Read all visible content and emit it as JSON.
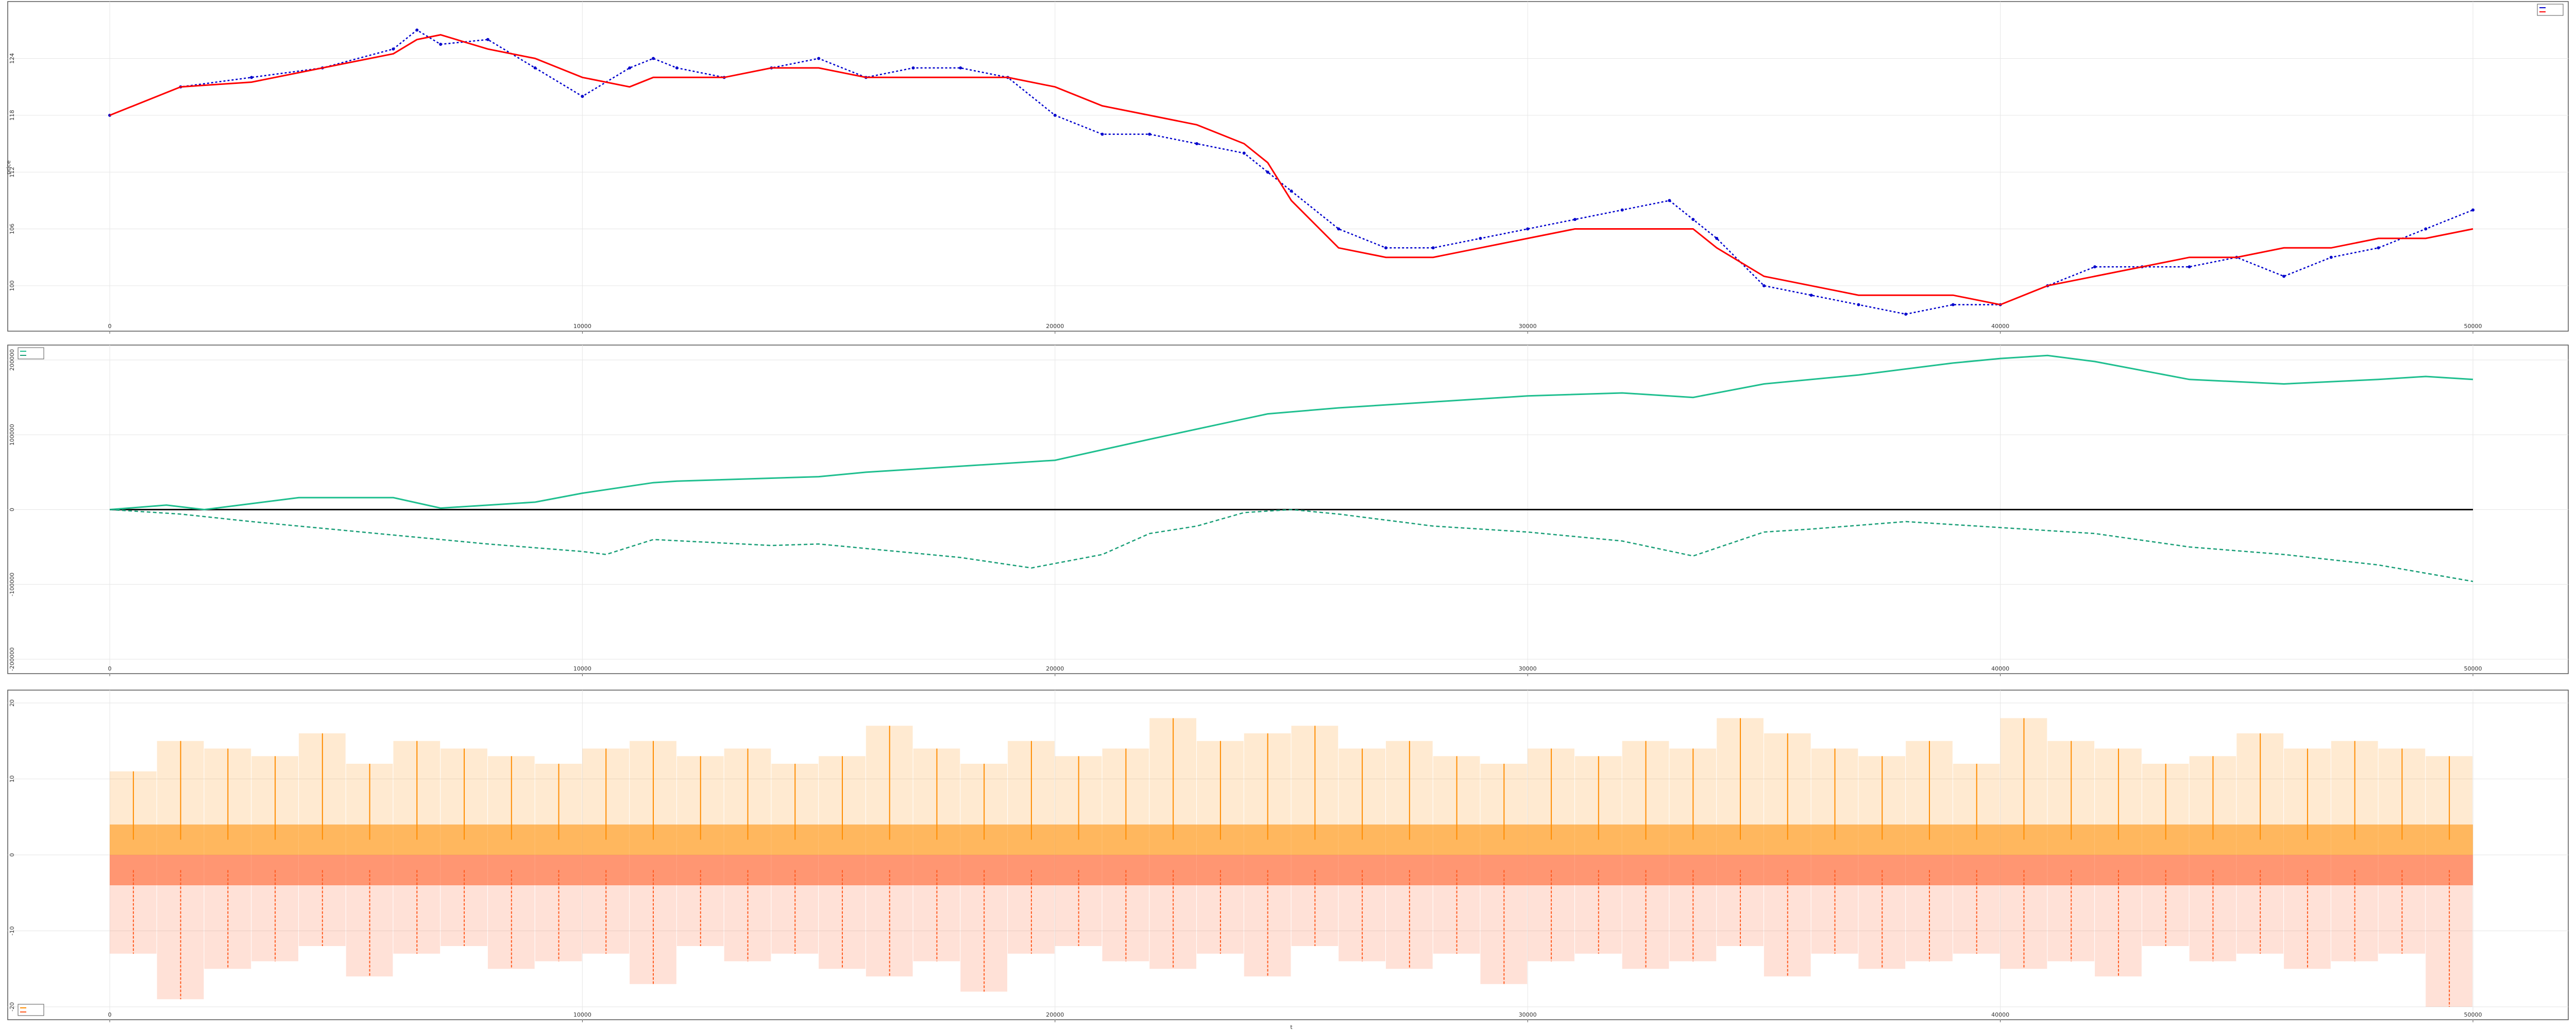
{
  "colors": {
    "frame": "#555555",
    "grid": "#e6e6e6",
    "price_actual": "#0000cc",
    "price_model": "#ff0000",
    "cum_pos": "#1fbf8f",
    "cum_neg": "#1a9f78",
    "zero_line": "#111111",
    "step_pos": "#ff8c00",
    "step_neg": "#ff5a1f"
  },
  "chart_data": [
    {
      "id": "price",
      "type": "line",
      "title": "",
      "xlabel": "",
      "ylabel": "price",
      "xlim": [
        0,
        50000
      ],
      "ylim": [
        97,
        128
      ],
      "x_ticks": [
        0,
        10000,
        20000,
        30000,
        40000,
        50000
      ],
      "y_ticks": [
        100,
        106,
        112,
        118,
        124
      ],
      "legend": {
        "position": "top-right",
        "entries": [
          "",
          ""
        ]
      },
      "series": [
        {
          "style": "dashed-marker",
          "color_key": "price_actual",
          "x": [
            0,
            1500,
            3000,
            4500,
            6000,
            6500,
            7000,
            8000,
            9000,
            10000,
            11000,
            11500,
            12000,
            13000,
            14000,
            15000,
            16000,
            17000,
            18000,
            19000,
            20000,
            21000,
            22000,
            23000,
            24000,
            24500,
            25000,
            26000,
            27000,
            28000,
            29000,
            30000,
            31000,
            32000,
            33000,
            33500,
            34000,
            35000,
            36000,
            37000,
            38000,
            39000,
            40000,
            41000,
            42000,
            43000,
            44000,
            45000,
            46000,
            47000,
            48000,
            49000,
            50000
          ],
          "values": [
            118,
            121,
            122,
            123,
            125,
            127,
            125.5,
            126,
            123,
            120,
            123,
            124,
            123,
            122,
            123,
            124,
            122,
            123,
            123,
            122,
            118,
            116,
            116,
            115,
            114,
            112,
            110,
            106,
            104,
            104,
            105,
            106,
            107,
            108,
            109,
            107,
            105,
            100,
            99,
            98,
            97,
            98,
            98,
            100,
            102,
            102,
            102,
            103,
            101,
            103,
            104,
            106,
            108
          ]
        },
        {
          "style": "solid",
          "color_key": "price_model",
          "x": [
            0,
            1500,
            3000,
            4500,
            6000,
            6500,
            7000,
            8000,
            9000,
            10000,
            11000,
            11500,
            12000,
            13000,
            14000,
            15000,
            16000,
            17000,
            18000,
            19000,
            20000,
            21000,
            22000,
            23000,
            24000,
            24500,
            25000,
            26000,
            27000,
            28000,
            29000,
            30000,
            31000,
            32000,
            33000,
            33500,
            34000,
            35000,
            36000,
            37000,
            38000,
            39000,
            40000,
            41000,
            42000,
            43000,
            44000,
            45000,
            46000,
            47000,
            48000,
            49000,
            50000
          ],
          "values": [
            118,
            121,
            121.5,
            123,
            124.5,
            126,
            126.5,
            125,
            124,
            122,
            121,
            122,
            122,
            122,
            123,
            123,
            122,
            122,
            122,
            122,
            121,
            119,
            118,
            117,
            115,
            113,
            109,
            104,
            103,
            103,
            104,
            105,
            106,
            106,
            106,
            106,
            104,
            101,
            100,
            99,
            99,
            99,
            98,
            100,
            101,
            102,
            103,
            103,
            104,
            104,
            105,
            105,
            106
          ]
        }
      ]
    },
    {
      "id": "cumulative",
      "type": "line",
      "title": "",
      "xlabel": "",
      "ylabel": "",
      "xlim": [
        0,
        50000
      ],
      "ylim": [
        -200000,
        220000
      ],
      "x_ticks": [
        0,
        10000,
        20000,
        30000,
        40000,
        50000
      ],
      "y_ticks": [
        -200000,
        -100000,
        0,
        100000,
        200000
      ],
      "legend": {
        "position": "top-left",
        "entries": [
          "",
          ""
        ]
      },
      "series": [
        {
          "style": "solid",
          "color_key": "cum_pos",
          "x": [
            0,
            1200,
            2000,
            4000,
            6000,
            7000,
            9000,
            10000,
            11500,
            12000,
            15000,
            16000,
            20000,
            22000,
            24500,
            26000,
            28000,
            30000,
            32000,
            33500,
            35000,
            37000,
            39000,
            40000,
            41000,
            42000,
            44000,
            46000,
            48000,
            49000,
            50000
          ],
          "values": [
            0,
            6000,
            0,
            16000,
            16000,
            2000,
            10000,
            22000,
            36000,
            38000,
            44000,
            50000,
            66000,
            94000,
            128000,
            136000,
            144000,
            152000,
            156000,
            150000,
            168000,
            180000,
            196000,
            202000,
            206000,
            198000,
            174000,
            168000,
            174000,
            178000,
            174000
          ]
        },
        {
          "style": "dashed",
          "color_key": "cum_neg",
          "x": [
            0,
            1500,
            3000,
            6000,
            8000,
            10000,
            10500,
            11500,
            14000,
            15000,
            18000,
            19500,
            21000,
            22000,
            23000,
            24000,
            25000,
            26000,
            28000,
            30000,
            31000,
            32000,
            33500,
            35000,
            36000,
            38000,
            40000,
            42000,
            44000,
            46000,
            48000,
            50000
          ],
          "values": [
            0,
            -6000,
            -16000,
            -34000,
            -46000,
            -56000,
            -60000,
            -40000,
            -48000,
            -46000,
            -64000,
            -78000,
            -60000,
            -32000,
            -22000,
            -4000,
            0,
            -6000,
            -22000,
            -30000,
            -36000,
            -42000,
            -62000,
            -30000,
            -26000,
            -16000,
            -24000,
            -32000,
            -50000,
            -60000,
            -74000,
            -96000
          ]
        }
      ]
    },
    {
      "id": "steps",
      "type": "bar",
      "title": "",
      "xlabel": "t",
      "ylabel": "",
      "xlim": [
        0,
        50000
      ],
      "ylim": [
        -20,
        20
      ],
      "x_ticks": [
        0,
        10000,
        20000,
        30000,
        40000,
        50000
      ],
      "y_ticks": [
        -20,
        -10,
        0,
        10,
        20
      ],
      "legend": {
        "position": "bottom-left",
        "entries": [
          "",
          ""
        ]
      },
      "series": [
        {
          "style": "solid",
          "color_key": "step_pos",
          "bin_width": 1000,
          "x": [
            0,
            1000,
            2000,
            3000,
            4000,
            5000,
            6000,
            7000,
            8000,
            9000,
            10000,
            11000,
            12000,
            13000,
            14000,
            15000,
            16000,
            17000,
            18000,
            19000,
            20000,
            21000,
            22000,
            23000,
            24000,
            25000,
            26000,
            27000,
            28000,
            29000,
            30000,
            31000,
            32000,
            33000,
            34000,
            35000,
            36000,
            37000,
            38000,
            39000,
            40000,
            41000,
            42000,
            43000,
            44000,
            45000,
            46000,
            47000,
            48000,
            49000
          ],
          "values": [
            11,
            15,
            14,
            13,
            16,
            12,
            15,
            14,
            13,
            12,
            14,
            15,
            13,
            14,
            12,
            13,
            17,
            14,
            12,
            15,
            13,
            14,
            18,
            15,
            16,
            17,
            14,
            15,
            13,
            12,
            14,
            13,
            15,
            14,
            18,
            16,
            14,
            13,
            15,
            12,
            18,
            15,
            14,
            12,
            13,
            16,
            14,
            15,
            14,
            13
          ]
        },
        {
          "style": "dashed",
          "color_key": "step_neg",
          "bin_width": 1000,
          "x": [
            0,
            1000,
            2000,
            3000,
            4000,
            5000,
            6000,
            7000,
            8000,
            9000,
            10000,
            11000,
            12000,
            13000,
            14000,
            15000,
            16000,
            17000,
            18000,
            19000,
            20000,
            21000,
            22000,
            23000,
            24000,
            25000,
            26000,
            27000,
            28000,
            29000,
            30000,
            31000,
            32000,
            33000,
            34000,
            35000,
            36000,
            37000,
            38000,
            39000,
            40000,
            41000,
            42000,
            43000,
            44000,
            45000,
            46000,
            47000,
            48000,
            49000
          ],
          "values": [
            -13,
            -19,
            -15,
            -14,
            -12,
            -16,
            -13,
            -12,
            -15,
            -14,
            -13,
            -17,
            -12,
            -14,
            -13,
            -15,
            -16,
            -14,
            -18,
            -13,
            -12,
            -14,
            -15,
            -13,
            -16,
            -12,
            -14,
            -15,
            -13,
            -17,
            -14,
            -13,
            -15,
            -14,
            -12,
            -16,
            -13,
            -15,
            -14,
            -13,
            -15,
            -14,
            -16,
            -12,
            -14,
            -13,
            -15,
            -14,
            -13,
            -20
          ]
        }
      ]
    }
  ]
}
